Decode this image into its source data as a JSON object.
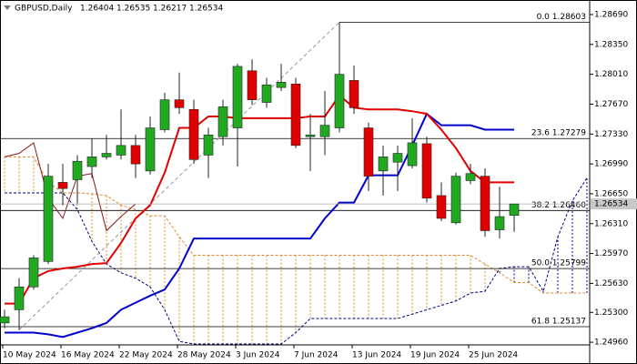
{
  "chart_data": {
    "type": "candlestick",
    "symbol": "GBPUSD,Daily",
    "categories": [
      "10 May 2024",
      null,
      null,
      null,
      "16 May 2024",
      null,
      null,
      null,
      "22 May 2024",
      null,
      null,
      null,
      "28 May 2024",
      null,
      null,
      null,
      "3 Jun 2024",
      null,
      null,
      null,
      "7 Jun 2024",
      null,
      null,
      null,
      "13 Jun 2024",
      null,
      null,
      null,
      "19 Jun 2024",
      null,
      null,
      null,
      "25 Jun 2024",
      null,
      null,
      null
    ],
    "open": [
      1.2518,
      1.2533,
      1.2559,
      1.2588,
      1.2678,
      1.2681,
      1.2696,
      1.2707,
      1.2709,
      1.272,
      1.2691,
      1.2738,
      1.2772,
      1.2761,
      1.2709,
      1.273,
      1.274,
      1.2805,
      1.2769,
      1.2786,
      1.279,
      1.273,
      1.273,
      1.274,
      1.2794,
      1.274,
      1.2691,
      1.2701,
      1.2697,
      1.2722,
      1.2663,
      1.2632,
      1.268,
      1.2685,
      1.2624,
      1.26404
    ],
    "high": [
      1.2533,
      1.2569,
      1.2595,
      1.2699,
      1.2699,
      1.2709,
      1.2728,
      1.2732,
      1.2761,
      1.2732,
      1.2753,
      1.278,
      1.2803,
      1.2772,
      1.274,
      1.2772,
      1.2813,
      1.2818,
      1.2797,
      1.2813,
      1.2797,
      1.2756,
      1.2782,
      1.28603,
      1.2811,
      1.2746,
      1.272,
      1.272,
      1.2751,
      1.273,
      1.2678,
      1.2689,
      1.2699,
      1.2694,
      1.2673,
      1.26535
    ],
    "low": [
      1.2512,
      1.251,
      1.2556,
      1.2585,
      1.2652,
      1.2654,
      1.2683,
      1.2704,
      1.2704,
      1.2683,
      1.2687,
      1.2735,
      1.2756,
      1.2699,
      1.2683,
      1.272,
      1.2696,
      1.2766,
      1.2763,
      1.2782,
      1.2717,
      1.2691,
      1.2709,
      1.2735,
      1.2756,
      1.2668,
      1.2663,
      1.2668,
      1.2694,
      1.2655,
      1.2634,
      1.263,
      1.2676,
      1.2616,
      1.2614,
      1.26217
    ],
    "close": [
      1.2525,
      1.2559,
      1.2592,
      1.2685,
      1.2671,
      1.2702,
      1.2707,
      1.2711,
      1.272,
      1.2699,
      1.274,
      1.2772,
      1.2763,
      1.2704,
      1.2732,
      1.2764,
      1.281,
      1.2772,
      1.2789,
      1.2792,
      1.272,
      1.2732,
      1.2743,
      1.2801,
      1.2763,
      1.2685,
      1.2707,
      1.2711,
      1.2723,
      1.266,
      1.2637,
      1.2685,
      1.2688,
      1.2623,
      1.2639,
      1.26534
    ],
    "colors": {
      "up": "#22a822",
      "down": "#e00000",
      "wick": "#222222"
    },
    "fast_line": {
      "color": "#e00000",
      "values": [
        1.254,
        1.254,
        1.2569,
        1.2577,
        1.258,
        1.2582,
        1.2585,
        1.2586,
        1.2609,
        1.2637,
        1.2652,
        1.2689,
        1.274,
        1.274,
        1.2753,
        1.2753,
        1.2751,
        1.2751,
        1.2751,
        1.2751,
        1.2751,
        1.2753,
        1.2753,
        1.2777,
        1.2763,
        1.2761,
        1.2761,
        1.2761,
        1.2759,
        1.2756,
        1.2738,
        1.2717,
        1.2691,
        1.2678,
        1.2678,
        1.2678
      ]
    },
    "slow_line": {
      "color": "#0000cc",
      "values": [
        1.2507,
        1.2507,
        1.2507,
        1.2505,
        1.2502,
        1.2507,
        1.2512,
        1.2518,
        1.2533,
        1.2541,
        1.2549,
        1.2556,
        1.258,
        1.2614,
        1.2614,
        1.2614,
        1.2614,
        1.2614,
        1.2614,
        1.2614,
        1.2614,
        1.2614,
        1.2637,
        1.2655,
        1.2655,
        1.2686,
        1.2686,
        1.2686,
        1.272,
        1.2756,
        1.2743,
        1.2743,
        1.2743,
        1.2738,
        1.2738,
        1.2738
      ]
    },
    "lagging_line": {
      "color": "#8b1a1a",
      "shift": 26
    },
    "cloud": {
      "color_a": "#e08a2c",
      "color_b": "#000080",
      "span_a": [
        1.2707,
        1.2707,
        1.2707,
        1.2678,
        1.2666,
        1.2666,
        1.2665,
        1.2663,
        1.2652,
        1.2647,
        1.264,
        1.264,
        1.2616,
        1.2595,
        1.2595,
        1.2595,
        1.2595,
        1.2595,
        1.2595,
        1.2595,
        1.2595,
        1.2595,
        1.2595,
        1.2595,
        1.2595,
        1.2595,
        1.2595,
        1.2595,
        1.2595,
        1.2595,
        1.2595,
        1.2595,
        1.2595,
        1.2585,
        1.2575,
        1.2564,
        1.2564,
        1.2552,
        1.2552,
        1.2552,
        1.2552
      ],
      "span_b": [
        1.2666,
        1.2666,
        1.2666,
        1.2666,
        1.2666,
        1.2647,
        1.2611,
        1.2585,
        1.2575,
        1.2569,
        1.2559,
        1.2533,
        1.2497,
        1.2494,
        1.2494,
        1.2494,
        1.2494,
        1.2494,
        1.2494,
        1.2494,
        1.2507,
        1.2523,
        1.2523,
        1.2523,
        1.2523,
        1.2523,
        1.2523,
        1.2523,
        1.2528,
        1.2533,
        1.2538,
        1.2543,
        1.2552,
        1.2554,
        1.258,
        1.2582,
        1.2582,
        1.2554,
        1.2616,
        1.2657,
        1.2683
      ]
    },
    "fib_levels": [
      {
        "value": 1.28603,
        "label": "0.0 1.28603"
      },
      {
        "value": 1.27279,
        "label": "23.6 1.27279"
      },
      {
        "value": 1.2646,
        "label": "38.2 1.26460"
      },
      {
        "value": 1.25799,
        "label": "50.0 1.25799"
      },
      {
        "value": 1.25137,
        "label": "61.8 1.25137"
      }
    ],
    "ylim": [
      1.2493,
      1.28835
    ],
    "yticks": [
      {
        "value": 1.2869,
        "label": "1.28690"
      },
      {
        "value": 1.2835,
        "label": "1.28350"
      },
      {
        "value": 1.2801,
        "label": "1.28010"
      },
      {
        "value": 1.2767,
        "label": "1.27670"
      },
      {
        "value": 1.2733,
        "label": "1.27330"
      },
      {
        "value": 1.2699,
        "label": "1.26990"
      },
      {
        "value": 1.2665,
        "label": "1.26650"
      },
      {
        "value": 1.2631,
        "label": "1.26310"
      },
      {
        "value": 1.2597,
        "label": "1.25970"
      },
      {
        "value": 1.2563,
        "label": "1.25630"
      },
      {
        "value": 1.253,
        "label": "1.25300"
      },
      {
        "value": 1.2496,
        "label": "1.24960"
      }
    ]
  }
}
